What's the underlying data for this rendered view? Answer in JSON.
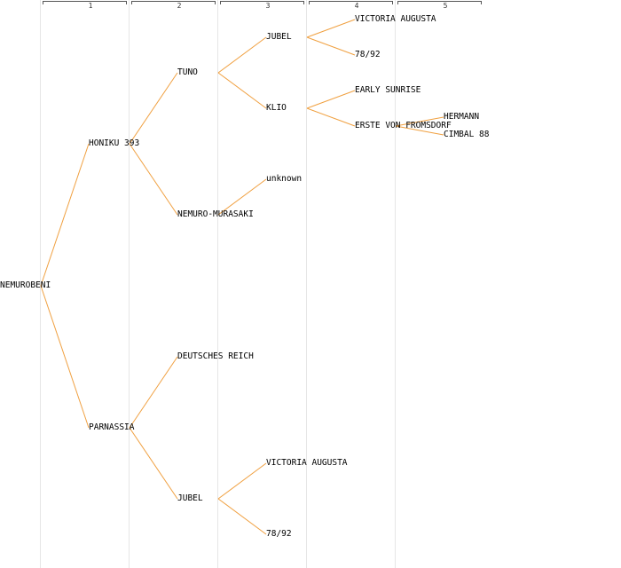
{
  "generations": [
    "1",
    "2",
    "3",
    "4",
    "5"
  ],
  "edge_color": "#f0a040",
  "tree": {
    "name": "NEMUROBENI",
    "children": [
      {
        "name": "HONIKU 393",
        "children": [
          {
            "name": "TUNO",
            "children": [
              {
                "name": "JUBEL",
                "children": [
                  {
                    "name": "VICTORIA AUGUSTA"
                  },
                  {
                    "name": "78/92"
                  }
                ]
              },
              {
                "name": "KLIO",
                "children": [
                  {
                    "name": "EARLY SUNRISE"
                  },
                  {
                    "name": "ERSTE VON FROMSDORF",
                    "children": [
                      {
                        "name": "HERMANN"
                      },
                      {
                        "name": "CIMBAL 88"
                      }
                    ]
                  }
                ]
              }
            ]
          },
          {
            "name": "NEMURO-MURASAKI",
            "children": [
              {
                "name": "unknown"
              }
            ]
          }
        ]
      },
      {
        "name": "PARNASSIA",
        "children": [
          {
            "name": "DEUTSCHES REICH"
          },
          {
            "name": "JUBEL",
            "children": [
              {
                "name": "VICTORIA AUGUSTA"
              },
              {
                "name": "78/92"
              }
            ]
          }
        ]
      }
    ]
  }
}
